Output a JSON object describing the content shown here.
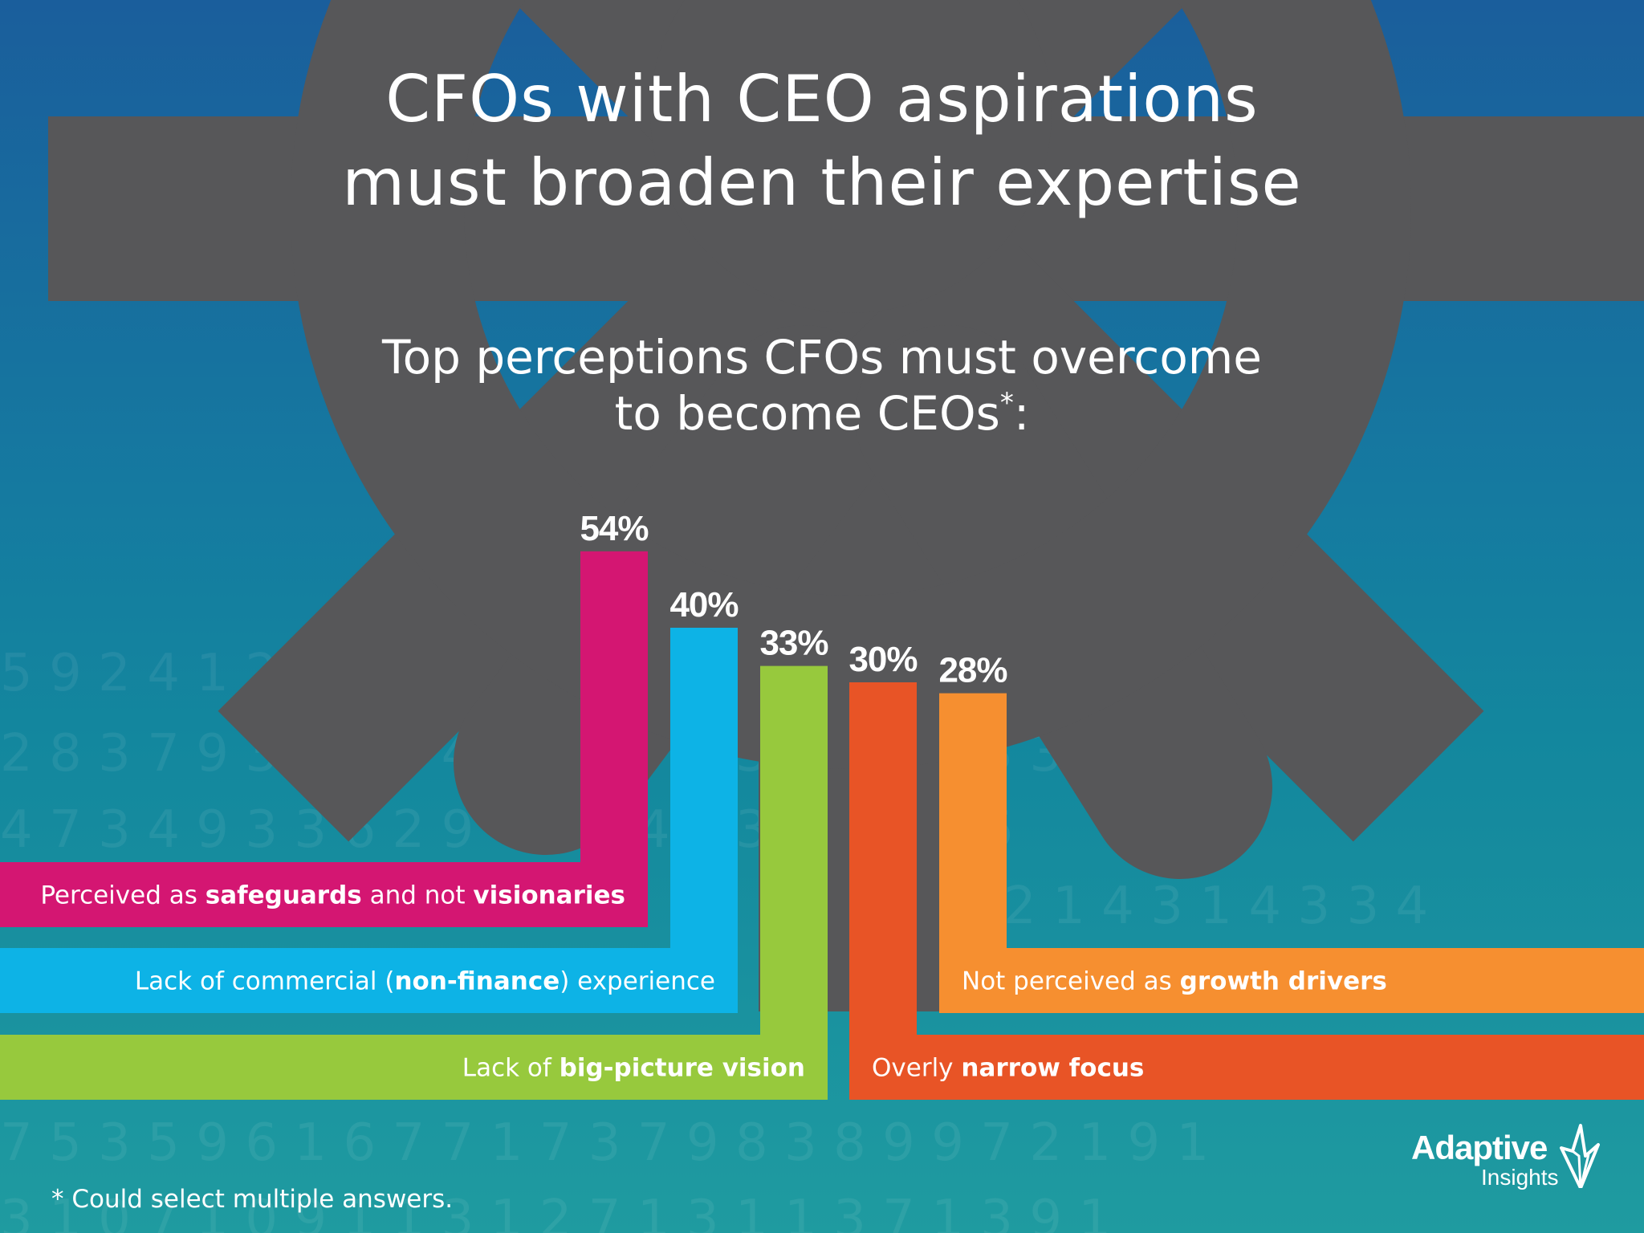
{
  "title_lines": [
    "CFOs with CEO aspirations",
    "must broaden their expertise"
  ],
  "subtitle": {
    "line1": "Top perceptions CFOs must overcome",
    "line2": "to become CEOs",
    "marker": "*",
    "suffix": ":"
  },
  "colors": {
    "magenta": "#d41672",
    "cyan": "#0db3e6",
    "green": "#97c93d",
    "red_orange": "#e85426",
    "orange": "#f68f30",
    "gear": "#575759"
  },
  "chart_data": {
    "type": "bar",
    "unit": "%",
    "categories": [
      "Perceived as safeguards and not visionaries",
      "Lack of commercial (non-finance) experience",
      "Lack of big-picture vision",
      "Overly narrow focus",
      "Not perceived as growth drivers"
    ],
    "values": [
      54,
      40,
      33,
      30,
      28
    ],
    "value_labels": [
      "54%",
      "40%",
      "33%",
      "30%",
      "28%"
    ],
    "label_parts": [
      [
        {
          "t": "Perceived as ",
          "b": false
        },
        {
          "t": "safeguards",
          "b": true
        },
        {
          "t": " and not ",
          "b": false
        },
        {
          "t": "visionaries",
          "b": true
        }
      ],
      [
        {
          "t": "Lack of commercial (",
          "b": false
        },
        {
          "t": "non-finance",
          "b": true
        },
        {
          "t": ") experience",
          "b": false
        }
      ],
      [
        {
          "t": "Lack of ",
          "b": false
        },
        {
          "t": "big-picture vision",
          "b": true
        }
      ],
      [
        {
          "t": "Overly ",
          "b": false
        },
        {
          "t": "narrow focus",
          "b": true
        }
      ],
      [
        {
          "t": "Not perceived as ",
          "b": false
        },
        {
          "t": "growth drivers",
          "b": true
        }
      ]
    ],
    "colors": [
      "#d41672",
      "#0db3e6",
      "#97c93d",
      "#e85426",
      "#f68f30"
    ]
  },
  "background_digit_rows": [
    "5 9 2 4 1 2 5 1 8 4 6 2 7 3 5 9 2 4 1 2 7 7 2",
    "2 8 3 7 9 3 3 1 6 4 2 8 3 7 9 3 9 3 3 1 3 3 3",
    "4 7 3 4 9 3 3 6 2 9 4 7 3 4 9 3 5 9 3 8 6",
    "2 1 4 3 1 4 3 3 4",
    "7 5 3 5 9 6 1 6 7 7 1 7 3 7 9 8 3 8 9 9 7 2 1 9 1",
    "3 1 0 7 1 0 9 1 1 3 1 2 7 1 3 1 1 3 7 1 3 9 1"
  ],
  "footnote": "* Could select multiple answers.",
  "logo": {
    "word1": "Adaptive",
    "word2": "Insights"
  }
}
